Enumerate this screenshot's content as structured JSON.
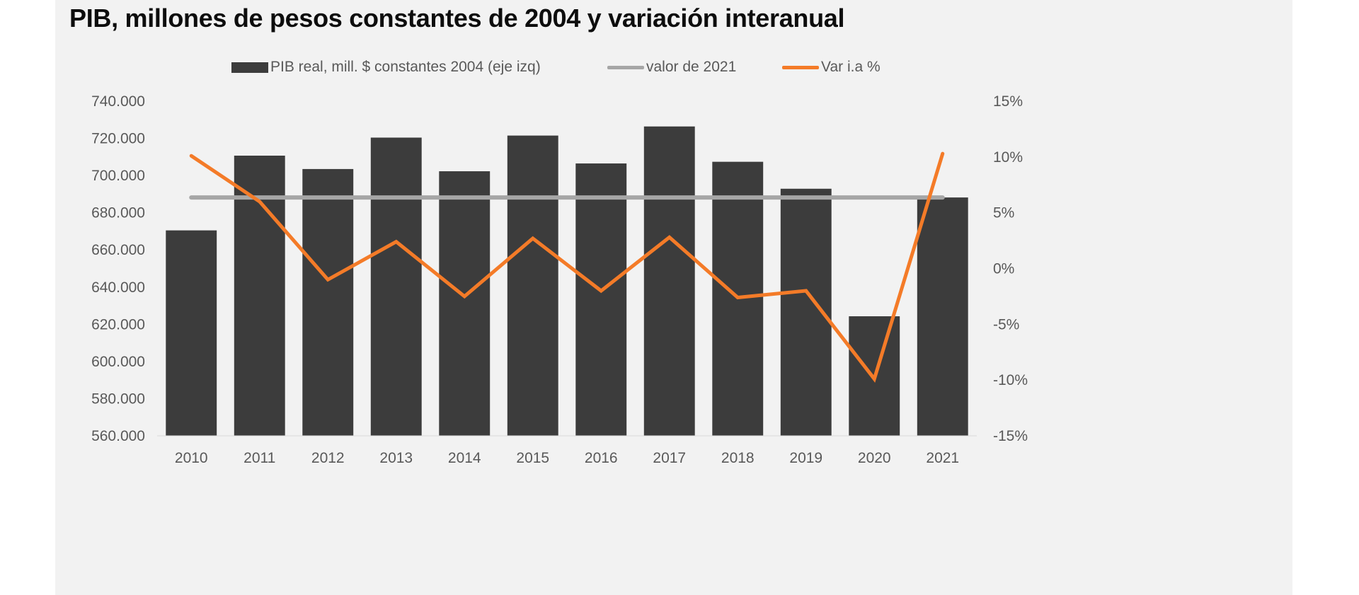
{
  "chart_data": {
    "type": "bar",
    "title": "PIB, millones de pesos constantes de 2004 y variación interanual",
    "categories": [
      "2010",
      "2011",
      "2012",
      "2013",
      "2014",
      "2015",
      "2016",
      "2017",
      "2018",
      "2019",
      "2020",
      "2021"
    ],
    "series": [
      {
        "name": "PIB real, mill. $ constantes 2004 (eje izq)",
        "type": "bar",
        "axis": "left",
        "color": "#3c3c3c",
        "values": [
          670500,
          710700,
          703500,
          720400,
          702300,
          721500,
          706500,
          726400,
          707400,
          692900,
          624300,
          688200
        ]
      },
      {
        "name": "valor de 2021",
        "type": "line",
        "axis": "left",
        "color": "#a6a6a6",
        "values": [
          688200,
          688200,
          688200,
          688200,
          688200,
          688200,
          688200,
          688200,
          688200,
          688200,
          688200,
          688200
        ]
      },
      {
        "name": "Var i.a %",
        "type": "line",
        "axis": "right",
        "color": "#f47b28",
        "values": [
          10.1,
          6.0,
          -1.0,
          2.4,
          -2.5,
          2.7,
          -2.0,
          2.8,
          -2.6,
          -2.0,
          -9.9,
          10.3
        ]
      }
    ],
    "left_axis": {
      "ylim": [
        560000,
        740000
      ],
      "ticks": [
        560000,
        580000,
        600000,
        620000,
        640000,
        660000,
        680000,
        700000,
        720000,
        740000
      ],
      "tick_labels": [
        "560.000",
        "580.000",
        "600.000",
        "620.000",
        "640.000",
        "660.000",
        "680.000",
        "700.000",
        "720.000",
        "740.000"
      ]
    },
    "right_axis": {
      "ylim": [
        -15,
        15
      ],
      "ticks": [
        -15,
        -10,
        -5,
        0,
        5,
        10,
        15
      ],
      "tick_labels": [
        "-15%",
        "-10%",
        "-5%",
        "0%",
        "5%",
        "10%",
        "15%"
      ]
    },
    "xlabel": "",
    "ylabel": "",
    "grid": false,
    "legend_position": "top-center"
  },
  "legend": [
    {
      "label": "PIB real, mill. $ constantes 2004 (eje izq)",
      "kind": "bar",
      "color": "#3c3c3c"
    },
    {
      "label": "valor de 2021",
      "kind": "line",
      "color": "#a6a6a6"
    },
    {
      "label": "Var i.a %",
      "kind": "line",
      "color": "#f47b28"
    }
  ],
  "colors": {
    "background": "#f2f2f2",
    "tick_text": "#595959",
    "title_text": "#0d0d0d"
  }
}
